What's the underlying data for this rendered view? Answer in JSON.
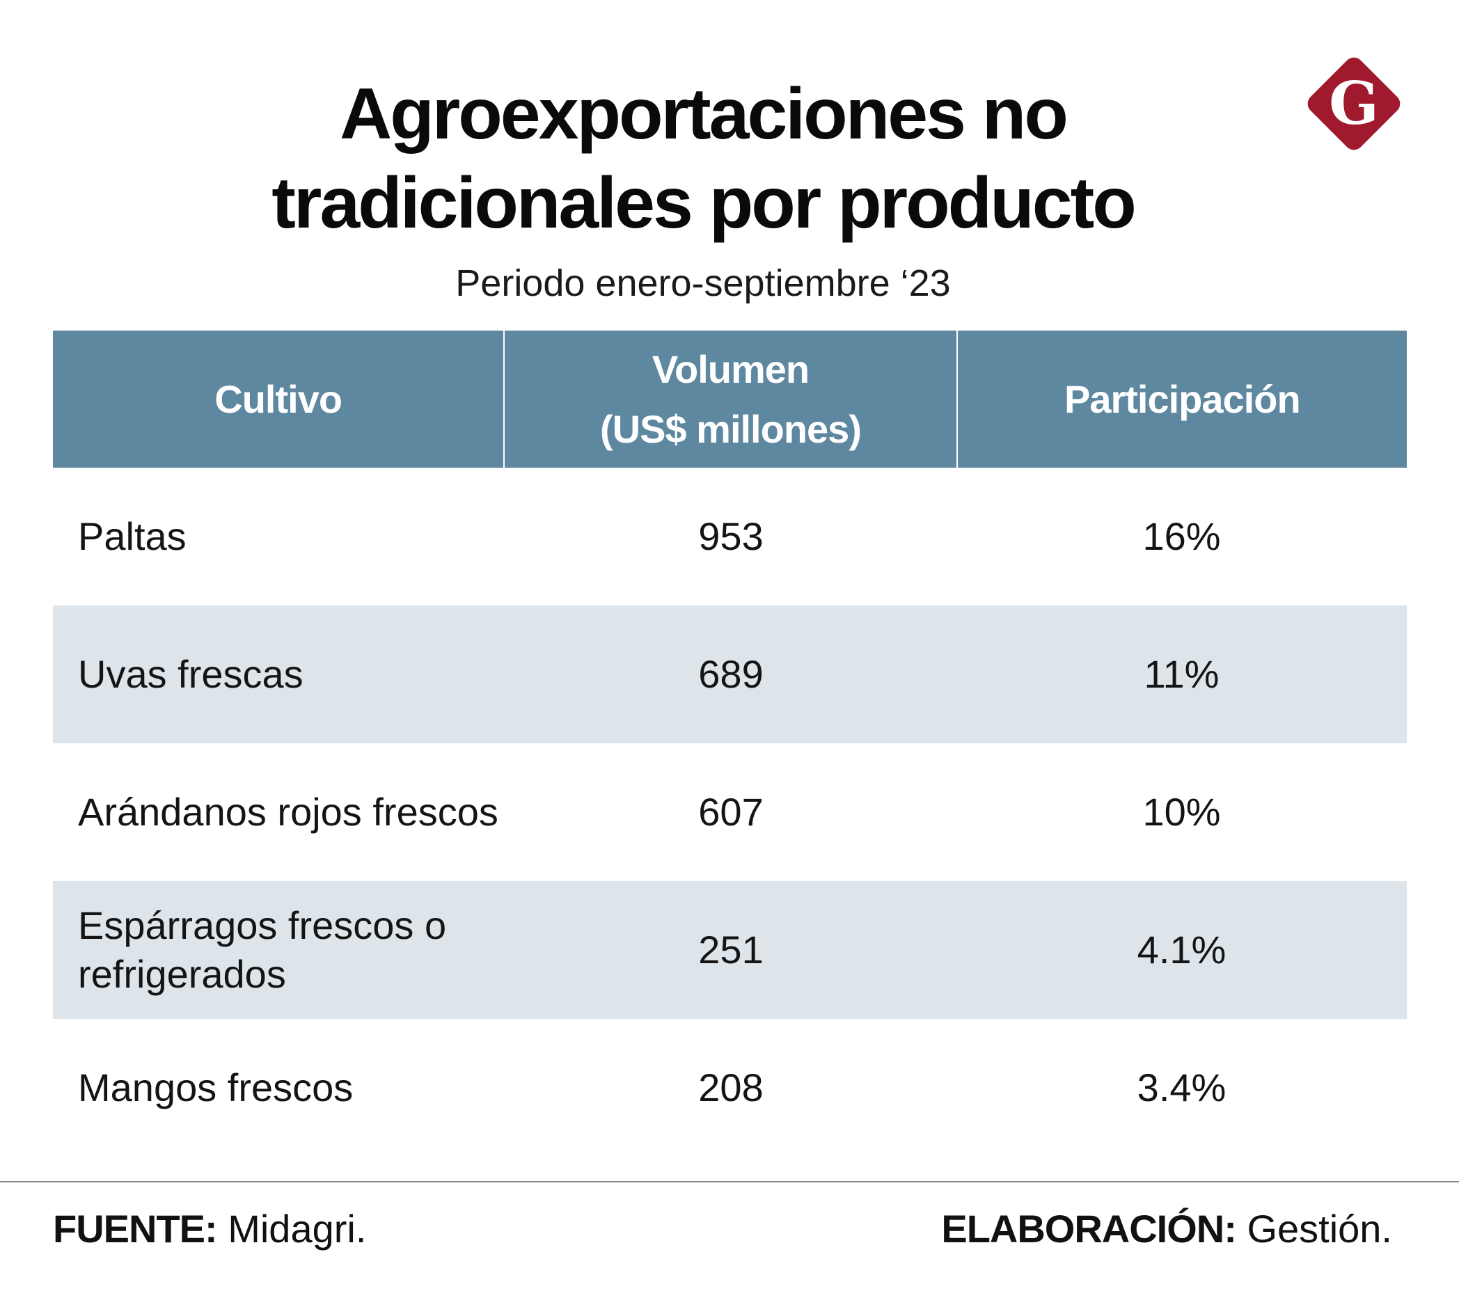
{
  "title": "Agroexportaciones no tradicionales por producto",
  "subtitle": "Periodo enero-septiembre ‘23",
  "logo": {
    "letter": "G",
    "color": "#a1192d",
    "icon": "gestion-logo-icon"
  },
  "colors": {
    "header_bg": "#5e87a0",
    "row_shade": "#dde5ea"
  },
  "chart_data": {
    "type": "table",
    "columns": [
      "Cultivo",
      "Volumen (US$ millones)",
      "Participación"
    ],
    "rows": [
      {
        "cultivo": "Paltas",
        "volumen": "953",
        "participacion": "16%"
      },
      {
        "cultivo": "Uvas frescas",
        "volumen": "689",
        "participacion": "11%"
      },
      {
        "cultivo": "Arándanos rojos frescos",
        "volumen": "607",
        "participacion": "10%"
      },
      {
        "cultivo": "Espárragos frescos o refrigerados",
        "volumen": "251",
        "participacion": "4.1%"
      },
      {
        "cultivo": "Mangos frescos",
        "volumen": "208",
        "participacion": "3.4%"
      }
    ]
  },
  "header": {
    "col1": "Cultivo",
    "col2_line1": "Volumen",
    "col2_line2": "(US$ millones)",
    "col3": "Participación"
  },
  "footer": {
    "source_label": "FUENTE:",
    "source_value": "Midagri.",
    "credit_label": "ELABORACIÓN:",
    "credit_value": "Gestión."
  }
}
